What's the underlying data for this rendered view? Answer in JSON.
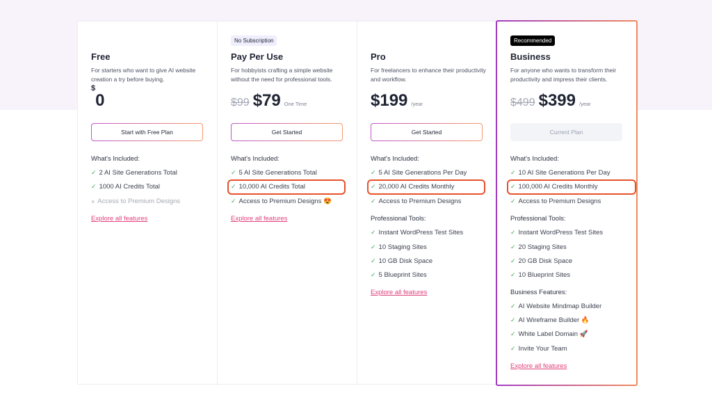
{
  "colors": {
    "accent_link": "#e0407a",
    "highlight": "#e8502a",
    "check": "#3ea65a"
  },
  "plans": [
    {
      "name": "Free",
      "description": "For starters who want to give AI website creation a try before buying.",
      "currency": "$",
      "price": "0",
      "button": "Start with Free Plan",
      "included_heading": "What's Included:",
      "included": [
        {
          "text": "2 AI Site Generations Total",
          "icon": "check-icon"
        },
        {
          "text": "1000 AI Credits Total",
          "icon": "check-icon"
        },
        {
          "text": "Access to Premium Designs",
          "icon": "x-icon"
        }
      ],
      "link": "Explore all features"
    },
    {
      "name": "Pay Per Use",
      "badge": "No Subscription",
      "description": "For hobbyists crafting a simple website without the need for professional tools.",
      "old_price": "$99",
      "price": "$79",
      "period": "One Time",
      "button": "Get Started",
      "included_heading": "What's Included:",
      "included": [
        {
          "text": "5 AI Site Generations Total"
        },
        {
          "text": "10,000 AI Credits Total",
          "highlighted": true
        },
        {
          "text": "Access to Premium Designs 😍"
        }
      ],
      "link": "Explore all features"
    },
    {
      "name": "Pro",
      "description": "For freelancers to enhance their productivity and workflow.",
      "price": "$199",
      "period": "/year",
      "button": "Get Started",
      "included_heading": "What's Included:",
      "included": [
        {
          "text": "5 AI Site Generations Per Day"
        },
        {
          "text": "20,000 AI Credits Monthly",
          "highlighted": true
        },
        {
          "text": "Access to Premium Designs"
        }
      ],
      "pro_heading": "Professional Tools:",
      "pro": [
        "Instant WordPress Test Sites",
        "10 Staging Sites",
        "10 GB Disk Space",
        "5 Blueprint Sites"
      ],
      "link": "Explore all features"
    },
    {
      "name": "Business",
      "badge": "Recommended",
      "description": "For anyone who wants to transform their productivity and impress their clients.",
      "old_price": "$499",
      "price": "$399",
      "period": "/year",
      "button": "Current Plan",
      "included_heading": "What's Included:",
      "included": [
        {
          "text": "10 AI Site Generations Per Day"
        },
        {
          "text": "100,000 AI Credits Monthly",
          "highlighted": true
        },
        {
          "text": "Access to Premium Designs"
        }
      ],
      "pro_heading": "Professional Tools:",
      "pro": [
        "Instant WordPress Test Sites",
        "20 Staging Sites",
        "20 GB Disk Space",
        "10 Blueprint Sites"
      ],
      "biz_heading": "Business Features:",
      "biz": [
        "AI Website Mindmap Builder",
        "AI Wireframe Builder 🔥",
        "White Label Domain 🚀",
        "Invite Your Team"
      ],
      "link": "Explore all features"
    }
  ]
}
